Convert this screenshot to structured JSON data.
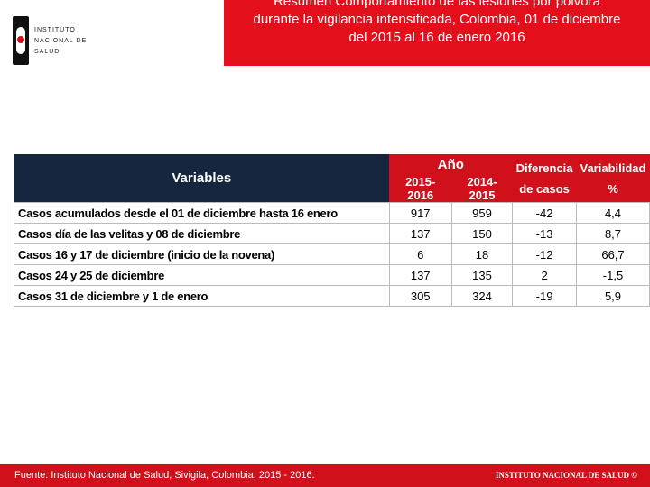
{
  "header": {
    "logo_lines": [
      "INSTITUTO",
      "NACIONAL DE",
      "SALUD"
    ],
    "title": "Resumen Comportamiento de las lesiones por pólvora durante la vigilancia intensificada, Colombia, 01 de diciembre del 2015 al 16 de enero 2016"
  },
  "table": {
    "headers": {
      "variables": "Variables",
      "year": "Año",
      "year_cols": [
        "2015-2016",
        "2014-2015"
      ],
      "difference": "Diferencia de casos",
      "variability": "Variabilidad %"
    },
    "rows": [
      [
        "Casos acumulados desde el 01 de diciembre hasta 16 enero",
        "917",
        "959",
        "-42",
        "4,4"
      ],
      [
        "Casos día de las velitas y  08 de diciembre",
        "137",
        "150",
        "-13",
        "8,7"
      ],
      [
        "Casos 16 y 17 de diciembre (inicio de la novena)",
        "6",
        "18",
        "-12",
        "66,7"
      ],
      [
        "Casos 24 y 25 de diciembre",
        "137",
        "135",
        "2",
        "-1,5"
      ],
      [
        "Casos 31 de diciembre y 1 de enero",
        "305",
        "324",
        "-19",
        "5,9"
      ]
    ]
  },
  "footer": {
    "source": "Fuente: Instituto Nacional de Salud, Sivigila, Colombia, 2015 - 2016.",
    "brand": "INSTITUTO NACIONAL DE SALUD ©"
  }
}
